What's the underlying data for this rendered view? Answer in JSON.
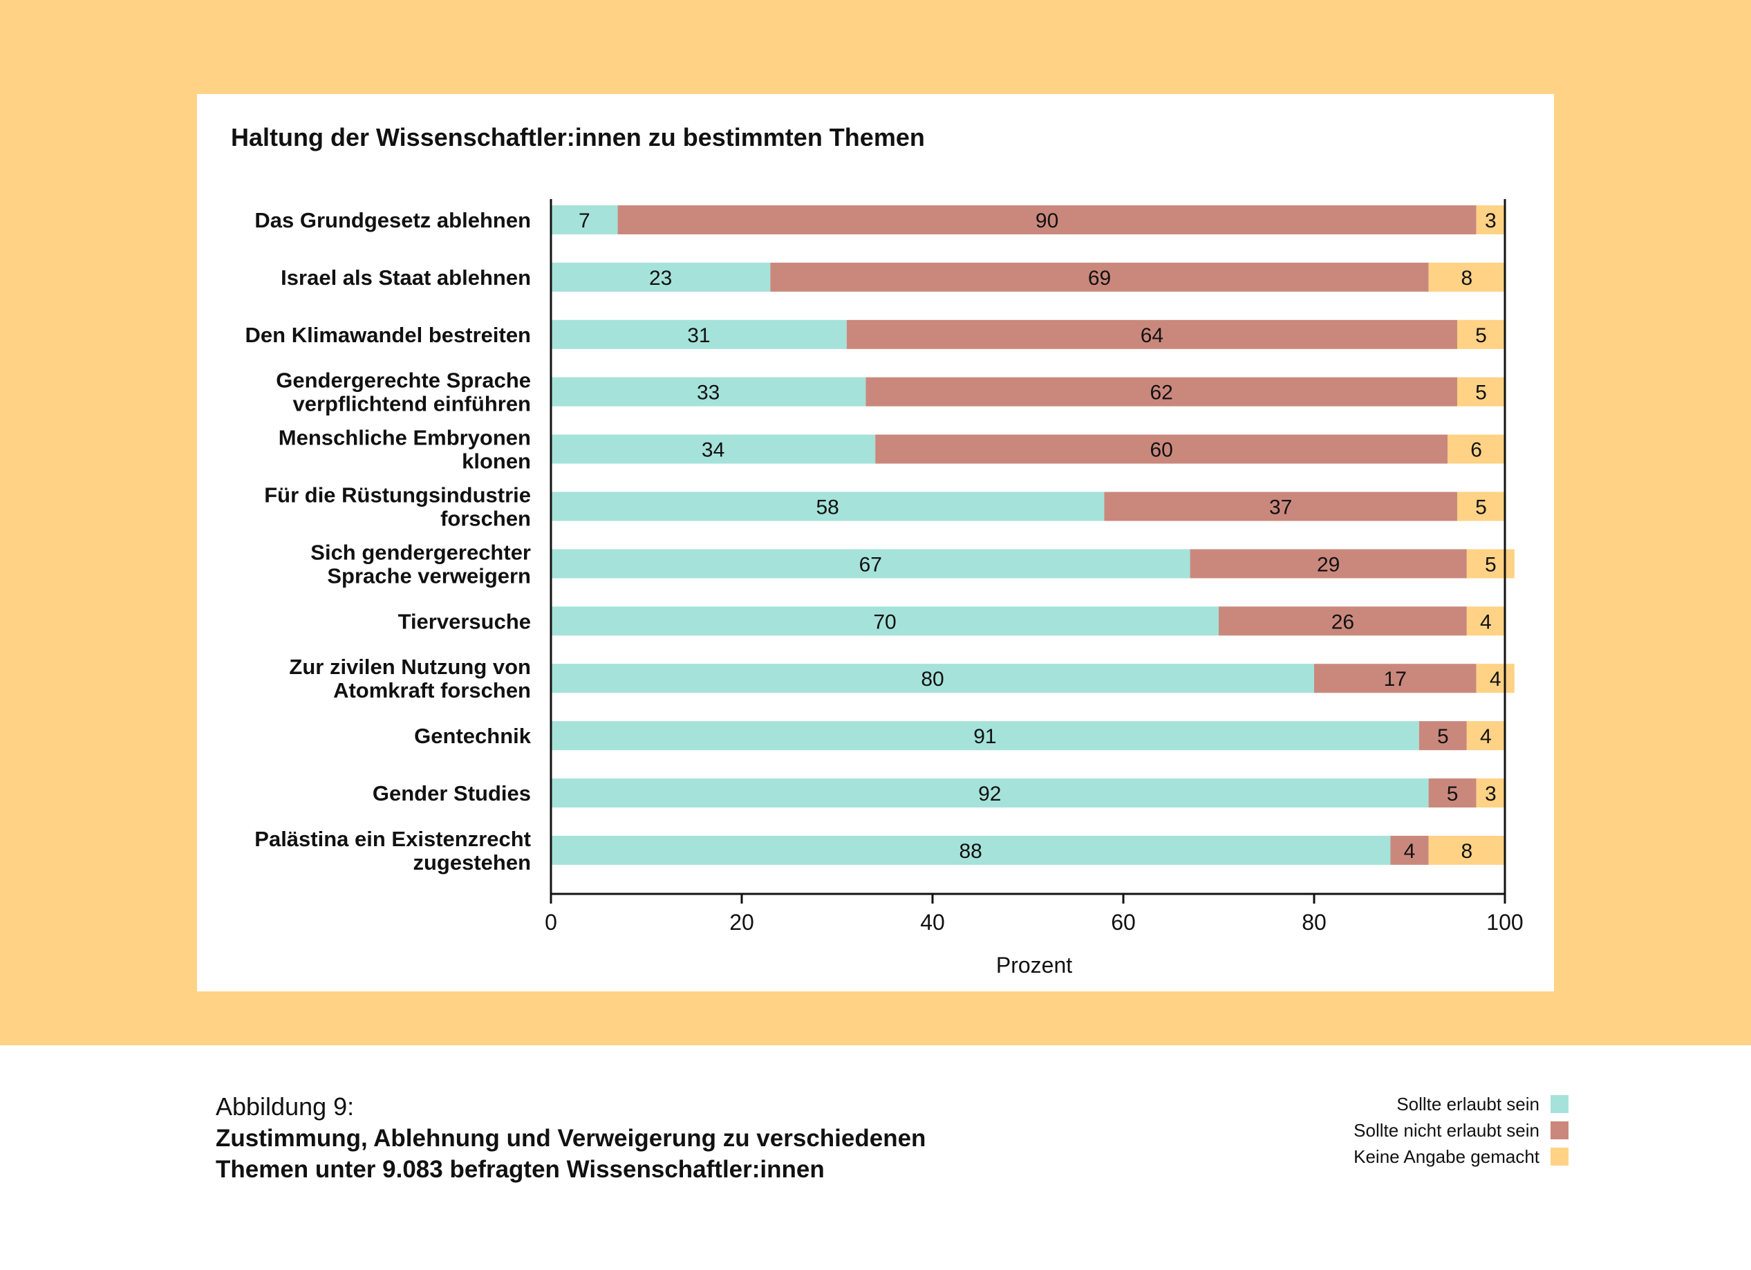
{
  "figure": {
    "number_label": "Abbildung 9:",
    "caption": "Zustimmung, Ablehnung und Verweigerung zu verschiedenen\nThemen unter 9.083 befragten Wissenschaftler:innen"
  },
  "colors": {
    "background_band": "#ffd285",
    "card": "#ffffff"
  },
  "legend": [
    {
      "label": "Sollte erlaubt sein",
      "color": "#a5e2da"
    },
    {
      "label": "Sollte nicht erlaubt sein",
      "color": "#ca887d"
    },
    {
      "label": "Keine Angabe gemacht",
      "color": "#ffd285"
    }
  ],
  "chart_data": {
    "type": "bar",
    "orientation": "horizontal",
    "stacked": true,
    "title": "Haltung der Wissenschaftler:innen zu bestimmten Themen",
    "xlabel": "Prozent",
    "ylabel": "",
    "xlim": [
      0,
      100
    ],
    "xticks": [
      "0",
      "20",
      "40",
      "60",
      "80",
      "100"
    ],
    "grid": false,
    "legend_position": "below-right",
    "categories": [
      [
        "Das Grundgesetz ablehnen"
      ],
      [
        "Israel als Staat ablehnen"
      ],
      [
        "Den Klimawandel bestreiten"
      ],
      [
        "Gendergerechte Sprache",
        "verpflichtend einführen"
      ],
      [
        "Menschliche Embryonen",
        "klonen"
      ],
      [
        "Für die Rüstungsindustrie",
        "forschen"
      ],
      [
        "Sich gendergerechter",
        "Sprache verweigern"
      ],
      [
        "Tierversuche"
      ],
      [
        "Zur zivilen Nutzung von",
        "Atomkraft forschen"
      ],
      [
        "Gentechnik"
      ],
      [
        "Gender Studies"
      ],
      [
        "Palästina ein Existenzrecht",
        "zugestehen"
      ]
    ],
    "series": [
      {
        "name": "Sollte erlaubt sein",
        "color": "#a5e2da",
        "values": [
          7,
          23,
          31,
          33,
          34,
          58,
          67,
          70,
          80,
          91,
          92,
          88
        ]
      },
      {
        "name": "Sollte nicht erlaubt sein",
        "color": "#ca887d",
        "values": [
          90,
          69,
          64,
          62,
          60,
          37,
          29,
          26,
          17,
          5,
          5,
          4
        ]
      },
      {
        "name": "Keine Angabe gemacht",
        "color": "#ffd285",
        "values": [
          3,
          8,
          5,
          5,
          6,
          5,
          5,
          4,
          4,
          4,
          3,
          8
        ]
      }
    ]
  }
}
